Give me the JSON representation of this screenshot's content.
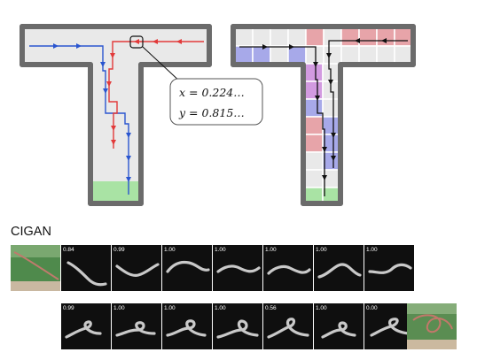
{
  "panels": {
    "continuous": {
      "coordinate_label": {
        "x_line": "x = 0.224…",
        "y_line": "y = 0.815…"
      }
    }
  },
  "colors": {
    "wall": "#6b6b6b",
    "floor": "#e9e9e9",
    "goal": "#a9e3a4",
    "red_path": "#e23a3a",
    "blue_path": "#2a55cf",
    "cell_red": "#e7a4a9",
    "cell_blue": "#a7a9e9",
    "cell_violet": "#d29ae0",
    "grid_line": "#ffffff",
    "grid_path": "#111111",
    "strip_bg": "#0f0f0f",
    "rope": "#c9c9c9"
  },
  "cigan": {
    "title": "CIGAN",
    "row1_scores": [
      "0.84",
      "0.99",
      "1.00",
      "1.00",
      "1.00",
      "1.00",
      "1.00"
    ],
    "row2_scores": [
      "0.99",
      "1.00",
      "1.00",
      "1.00",
      "0.56",
      "1.00",
      "0.00"
    ]
  }
}
